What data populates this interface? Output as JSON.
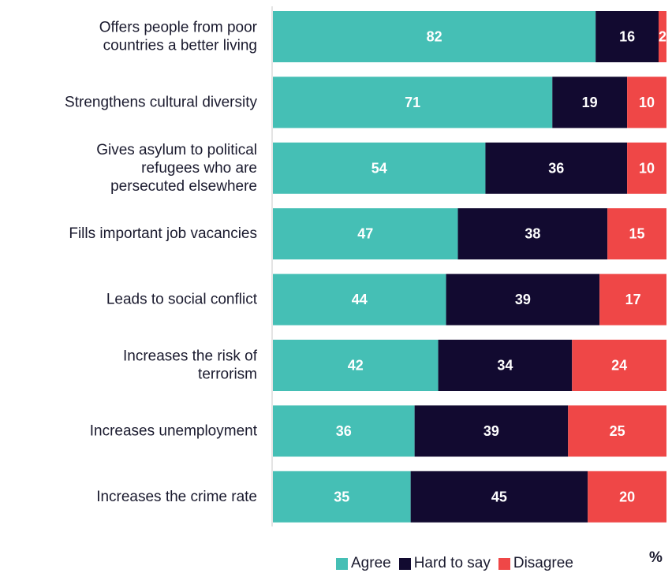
{
  "chart_data": {
    "type": "bar",
    "orientation": "horizontal",
    "stacked": true,
    "xlim": [
      0,
      100
    ],
    "unit": "%",
    "categories": [
      [
        "Offers people from poor",
        "countries a better living"
      ],
      [
        "Strengthens cultural diversity"
      ],
      [
        "Gives asylum to political",
        "refugees who are",
        "persecuted elsewhere"
      ],
      [
        "Fills important job vacancies"
      ],
      [
        "Leads to social conflict"
      ],
      [
        "Increases the risk of",
        "terrorism"
      ],
      [
        "Increases unemployment"
      ],
      [
        "Increases the crime rate"
      ]
    ],
    "series": [
      {
        "name": "Agree",
        "color": "#45bfb5",
        "values": [
          82,
          71,
          54,
          47,
          44,
          42,
          36,
          35
        ]
      },
      {
        "name": "Hard to say",
        "color": "#120a30",
        "values": [
          16,
          19,
          36,
          38,
          39,
          34,
          39,
          45
        ]
      },
      {
        "name": "Disagree",
        "color": "#ef4747",
        "values": [
          2,
          10,
          10,
          15,
          17,
          24,
          25,
          20
        ]
      }
    ],
    "legend_position": "bottom-right",
    "grid": false
  }
}
